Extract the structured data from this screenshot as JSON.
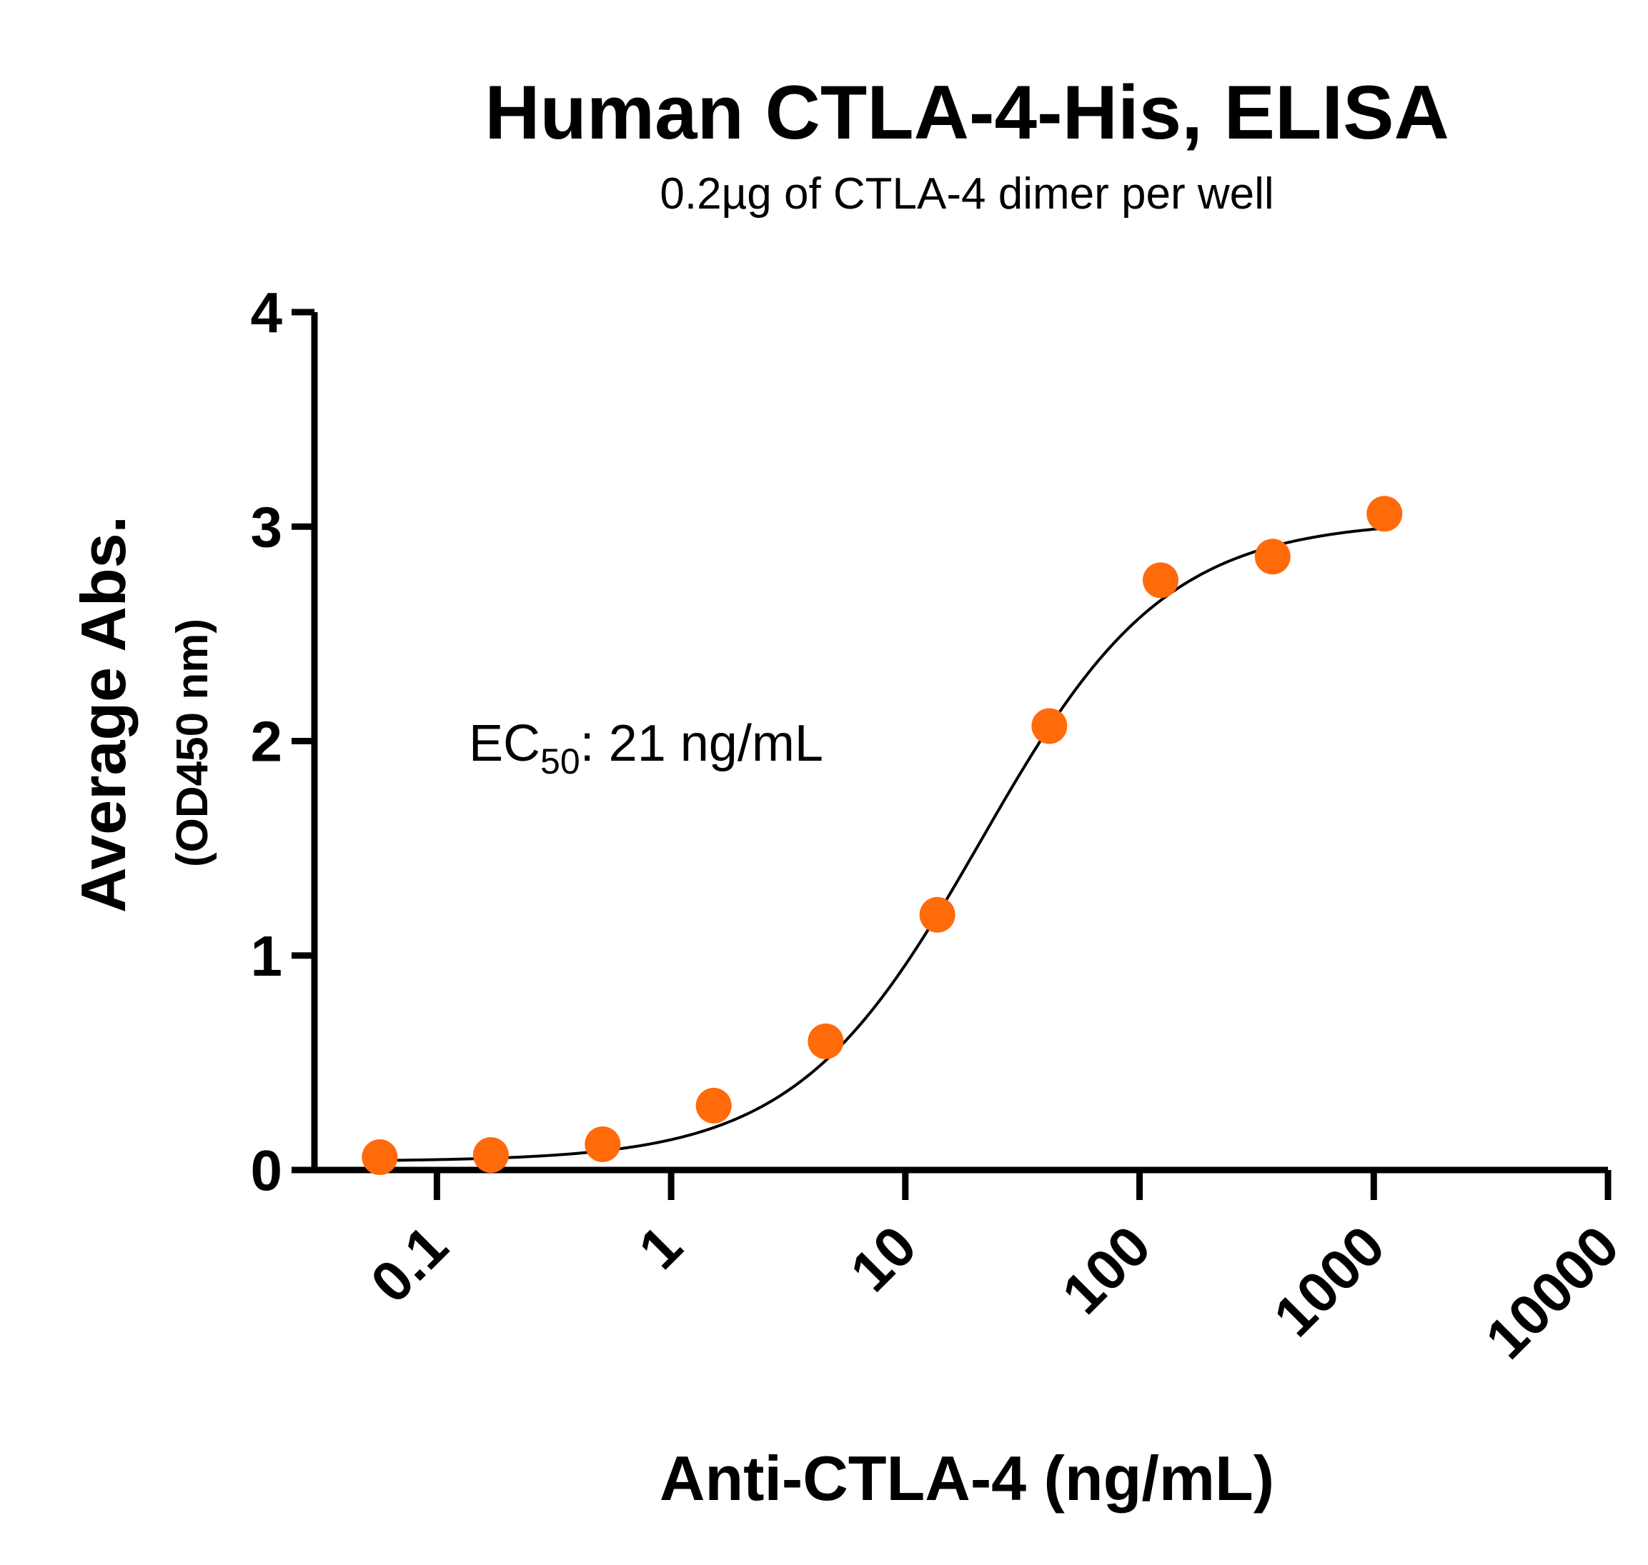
{
  "chart_data": {
    "type": "scatter",
    "title": "Human CTLA-4-His, ELISA",
    "subtitle": "0.2µg of CTLA-4 dimer per well",
    "xlabel": "Anti-CTLA-4 (ng/mL)",
    "ylabel": "Average Abs.",
    "ylabel_secondary": "(OD450 nm)",
    "x_scale": "log",
    "xlim": [
      0.03,
      10000
    ],
    "ylim": [
      0,
      4
    ],
    "x_ticks": [
      {
        "value": 0.1,
        "label": "0.1"
      },
      {
        "value": 1,
        "label": "1"
      },
      {
        "value": 10,
        "label": "10"
      },
      {
        "value": 100,
        "label": "100"
      },
      {
        "value": 1000,
        "label": "1000"
      },
      {
        "value": 10000,
        "label": "10000"
      }
    ],
    "y_ticks": [
      {
        "value": 0,
        "label": "0"
      },
      {
        "value": 1,
        "label": "1"
      },
      {
        "value": 2,
        "label": "2"
      },
      {
        "value": 3,
        "label": "3"
      },
      {
        "value": 4,
        "label": "4"
      }
    ],
    "grid": false,
    "legend": "none",
    "series": [
      {
        "marker_color": "#ff6a0a",
        "x": [
          0.057,
          0.17,
          0.51,
          1.52,
          4.57,
          13.7,
          41.2,
          123,
          370,
          1111
        ],
        "y": [
          0.06,
          0.07,
          0.12,
          0.3,
          0.6,
          1.19,
          2.07,
          2.75,
          2.86,
          3.06
        ]
      }
    ],
    "fit": {
      "model": "4PL",
      "bottom": 0.04,
      "top": 3.03,
      "ec50": 21,
      "hill": 1.1,
      "color": "#000000"
    },
    "annotation": {
      "prefix": "EC",
      "subscript": "50",
      "suffix": ": 21 ng/mL"
    }
  }
}
